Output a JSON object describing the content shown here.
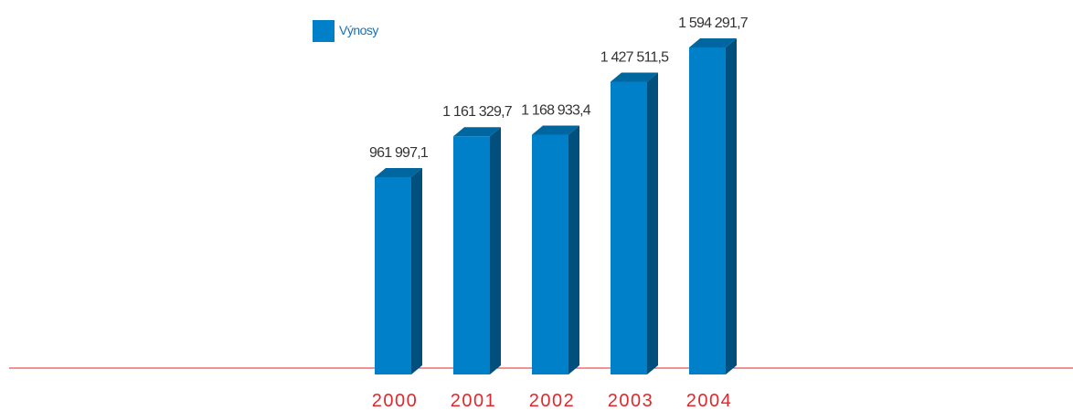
{
  "chart_data": {
    "type": "bar3d",
    "categories": [
      "2000",
      "2001",
      "2002",
      "2003",
      "2004"
    ],
    "series": [
      {
        "name": "Výnosy",
        "color": "#0080c8",
        "values": [
          961997.1,
          1161329.7,
          1168933.4,
          1427511.5,
          1594291.7
        ],
        "value_labels": [
          "961 997,1",
          "1 161 329,7",
          "1 168 933,4",
          "1 427 511,5",
          "1 594 291,7"
        ]
      }
    ],
    "legend": "top-left"
  }
}
